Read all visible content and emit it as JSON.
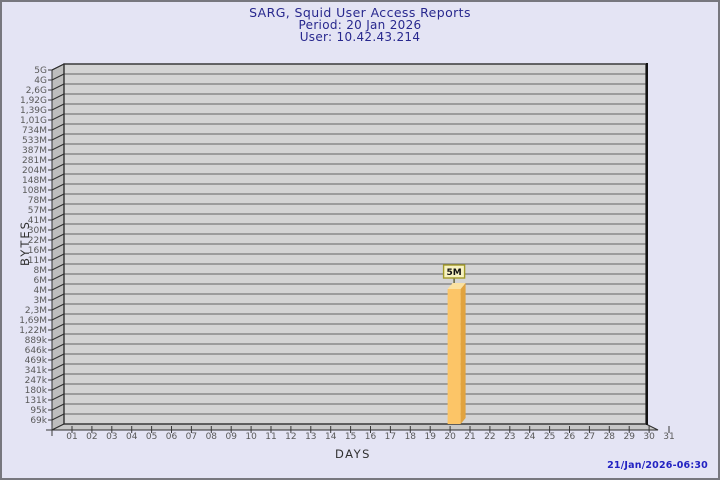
{
  "header": {
    "title": "SARG, Squid User Access Reports",
    "period_line": "Period: 20 Jan 2026",
    "user_line": "User: 10.42.43.214",
    "color": "#28288E"
  },
  "footer": {
    "generated_timestamp": "21/Jan/2026-06:30",
    "color": "#2222C2"
  },
  "chart_data": {
    "type": "bar",
    "title": "SARG, Squid User Access Reports",
    "subtitle": [
      "Period: 20 Jan 2026",
      "User: 10.42.43.214"
    ],
    "xlabel": "DAYS",
    "ylabel": "BYTES",
    "y_scale": "logarithmic-like, 69k to 5G",
    "grid": "horizontal",
    "x_categories": [
      "01",
      "02",
      "03",
      "04",
      "05",
      "06",
      "07",
      "08",
      "09",
      "10",
      "11",
      "12",
      "13",
      "14",
      "15",
      "16",
      "17",
      "18",
      "19",
      "20",
      "21",
      "22",
      "23",
      "24",
      "25",
      "26",
      "27",
      "28",
      "29",
      "30",
      "31"
    ],
    "y_tick_labels_top_to_bottom": [
      "5G",
      "4G",
      "2,6G",
      "1,92G",
      "1,39G",
      "1,01G",
      "734M",
      "533M",
      "387M",
      "281M",
      "204M",
      "148M",
      "108M",
      "78M",
      "57M",
      "41M",
      "30M",
      "22M",
      "16M",
      "11M",
      "8M",
      "6M",
      "4M",
      "3M",
      "2,3M",
      "1,69M",
      "1,22M",
      "889k",
      "646k",
      "469k",
      "341k",
      "247k",
      "180k",
      "131k",
      "95k",
      "69k"
    ],
    "bars": [
      {
        "day": "20",
        "value_label": "5M",
        "row_from_top": 22.5
      }
    ],
    "colors": {
      "page_bg": "#E4E4F4",
      "frame_border": "#77777E",
      "plot_bg": "#D4D4D4",
      "wall": "#BDBDBD",
      "floor": "#C7C7C7",
      "grid": "#646464",
      "edge": "#2E2E2E",
      "tick_label": "#5A5A5A",
      "bar_front": "#FCC567",
      "bar_side": "#E1A33F",
      "bar_top": "#FBE1A0",
      "value_box_bg": "#F7F2C1",
      "value_box_border": "#A29A28",
      "value_text": "#111111"
    }
  }
}
